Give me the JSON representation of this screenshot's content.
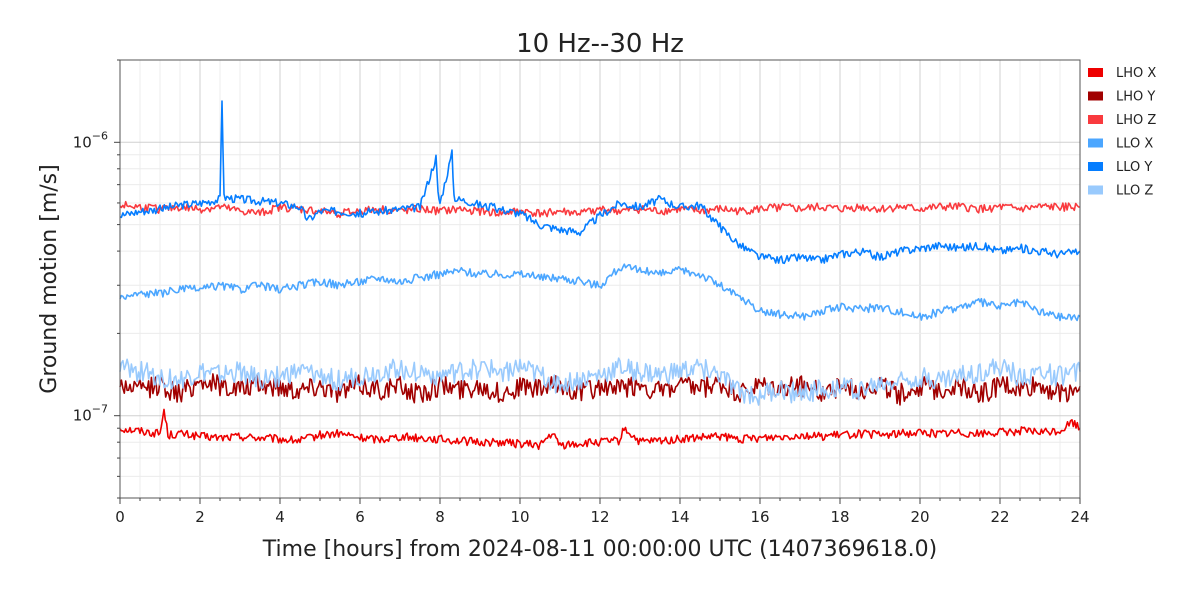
{
  "chart_data": {
    "type": "line",
    "title": "10 Hz--30 Hz",
    "xlabel": "Time [hours] from 2024-08-11 00:00:00 UTC (1407369618.0)",
    "ylabel": "Ground motion [m/s]",
    "xlim": [
      0,
      24
    ],
    "ylim": [
      5e-08,
      2e-06
    ],
    "yscale": "log",
    "grid": true,
    "legend_position": "outside-top-right",
    "x_ticks": [
      {
        "value": 0,
        "label": "0"
      },
      {
        "value": 2,
        "label": "2"
      },
      {
        "value": 4,
        "label": "4"
      },
      {
        "value": 6,
        "label": "6"
      },
      {
        "value": 8,
        "label": "8"
      },
      {
        "value": 10,
        "label": "10"
      },
      {
        "value": 12,
        "label": "12"
      },
      {
        "value": 14,
        "label": "14"
      },
      {
        "value": 16,
        "label": "16"
      },
      {
        "value": 18,
        "label": "18"
      },
      {
        "value": 20,
        "label": "20"
      },
      {
        "value": 22,
        "label": "22"
      },
      {
        "value": 24,
        "label": "24"
      }
    ],
    "y_ticks": [
      {
        "value": 1e-07,
        "mantissa": "10",
        "exponent": "−7"
      },
      {
        "value": 1e-06,
        "mantissa": "10",
        "exponent": "−6"
      }
    ],
    "series": [
      {
        "name": "LHO X",
        "color": "#ee0000",
        "x": [
          0,
          0.5,
          1,
          1.1,
          1.2,
          1.5,
          2,
          2.5,
          3,
          3.5,
          4,
          4.5,
          5,
          5.5,
          6,
          6.5,
          7,
          7.5,
          8,
          8.5,
          9,
          9.5,
          10,
          10.5,
          10.8,
          11,
          11.5,
          12,
          12.5,
          12.6,
          13,
          13.5,
          14,
          14.5,
          15,
          15.5,
          16,
          16.5,
          17,
          17.5,
          18,
          18.5,
          19,
          19.5,
          20,
          20.5,
          21,
          21.5,
          22,
          22.5,
          23,
          23.5,
          23.8,
          24
        ],
        "y": [
          9e-08,
          8.8e-08,
          8.6e-08,
          1.05e-07,
          8.5e-08,
          8.6e-08,
          8.4e-08,
          8.3e-08,
          8.4e-08,
          8.3e-08,
          8.2e-08,
          8.1e-08,
          8.5e-08,
          8.6e-08,
          8.3e-08,
          8.2e-08,
          8.4e-08,
          8.3e-08,
          8.2e-08,
          8.1e-08,
          8e-08,
          8e-08,
          7.9e-08,
          7.8e-08,
          8.6e-08,
          7.8e-08,
          7.9e-08,
          8e-08,
          8.1e-08,
          9e-08,
          8e-08,
          8.1e-08,
          8.2e-08,
          8.3e-08,
          8.4e-08,
          8.2e-08,
          8.3e-08,
          8.4e-08,
          8.5e-08,
          8.4e-08,
          8.5e-08,
          8.6e-08,
          8.5e-08,
          8.6e-08,
          8.7e-08,
          8.6e-08,
          8.7e-08,
          8.6e-08,
          8.7e-08,
          8.8e-08,
          8.7e-08,
          8.8e-08,
          9.5e-08,
          9e-08
        ]
      },
      {
        "name": "LHO Y",
        "color": "#a10000",
        "x": [
          0,
          0.5,
          1,
          1.5,
          2,
          2.5,
          3,
          3.5,
          4,
          4.5,
          5,
          5.5,
          6,
          6.5,
          7,
          7.5,
          8,
          8.5,
          9,
          9.5,
          10,
          10.5,
          11,
          11.5,
          12,
          12.5,
          13,
          13.5,
          14,
          14.5,
          15,
          15.5,
          16,
          16.5,
          17,
          17.5,
          18,
          18.5,
          19,
          19.5,
          20,
          20.5,
          21,
          21.5,
          22,
          22.5,
          23,
          23.5,
          24
        ],
        "y": [
          1.3e-07,
          1.25e-07,
          1.3e-07,
          1.2e-07,
          1.35e-07,
          1.3e-07,
          1.25e-07,
          1.3e-07,
          1.28e-07,
          1.25e-07,
          1.3e-07,
          1.22e-07,
          1.3e-07,
          1.25e-07,
          1.28e-07,
          1.2e-07,
          1.3e-07,
          1.25e-07,
          1.3e-07,
          1.2e-07,
          1.28e-07,
          1.25e-07,
          1.3e-07,
          1.22e-07,
          1.28e-07,
          1.25e-07,
          1.3e-07,
          1.22e-07,
          1.28e-07,
          1.25e-07,
          1.3e-07,
          1.2e-07,
          1.28e-07,
          1.25e-07,
          1.3e-07,
          1.22e-07,
          1.28e-07,
          1.25e-07,
          1.3e-07,
          1.2e-07,
          1.28e-07,
          1.25e-07,
          1.3e-07,
          1.2e-07,
          1.3e-07,
          1.25e-07,
          1.3e-07,
          1.2e-07,
          1.28e-07
        ]
      },
      {
        "name": "LHO Z",
        "color": "#f93a3e",
        "x": [
          0,
          0.5,
          1,
          1.5,
          2,
          2.5,
          3,
          3.5,
          4,
          4.5,
          5,
          5.5,
          6,
          6.5,
          7,
          7.5,
          8,
          8.5,
          9,
          9.5,
          10,
          10.5,
          11,
          11.5,
          12,
          12.5,
          13,
          13.5,
          14,
          14.5,
          15,
          15.5,
          16,
          16.5,
          17,
          17.5,
          18,
          18.5,
          19,
          19.5,
          20,
          20.5,
          21,
          21.5,
          22,
          22.5,
          23,
          23.5,
          24
        ],
        "y": [
          5.9e-07,
          5.8e-07,
          5.7e-07,
          5.8e-07,
          5.7e-07,
          5.8e-07,
          5.6e-07,
          5.5e-07,
          5.8e-07,
          5.7e-07,
          5.6e-07,
          5.5e-07,
          5.6e-07,
          5.7e-07,
          5.6e-07,
          5.7e-07,
          5.6e-07,
          5.7e-07,
          5.6e-07,
          5.5e-07,
          5.6e-07,
          5.5e-07,
          5.6e-07,
          5.5e-07,
          5.7e-07,
          5.6e-07,
          5.7e-07,
          5.6e-07,
          5.7e-07,
          5.6e-07,
          5.7e-07,
          5.6e-07,
          5.7e-07,
          5.8e-07,
          5.7e-07,
          5.8e-07,
          5.7e-07,
          5.8e-07,
          5.7e-07,
          5.8e-07,
          5.7e-07,
          5.8e-07,
          5.8e-07,
          5.7e-07,
          5.8e-07,
          5.7e-07,
          5.8e-07,
          5.8e-07,
          5.8e-07
        ]
      },
      {
        "name": "LLO X",
        "color": "#4ba6ff",
        "x": [
          0,
          0.5,
          1,
          1.5,
          2,
          2.5,
          3,
          3.5,
          4,
          4.5,
          5,
          5.5,
          6,
          6.5,
          7,
          7.5,
          8,
          8.5,
          9,
          9.5,
          10,
          10.5,
          11,
          11.5,
          12,
          12.5,
          13,
          13.5,
          14,
          14.5,
          15,
          15.5,
          16,
          16.5,
          17,
          17.5,
          18,
          18.5,
          19,
          19.5,
          20,
          20.5,
          21,
          21.5,
          22,
          22.5,
          23,
          23.5,
          24
        ],
        "y": [
          2.7e-07,
          2.8e-07,
          2.8e-07,
          2.9e-07,
          2.9e-07,
          3e-07,
          2.9e-07,
          3e-07,
          2.9e-07,
          3e-07,
          3.1e-07,
          3e-07,
          3.1e-07,
          3.2e-07,
          3.1e-07,
          3.2e-07,
          3.3e-07,
          3.4e-07,
          3.3e-07,
          3.3e-07,
          3.3e-07,
          3.2e-07,
          3.2e-07,
          3.1e-07,
          3e-07,
          3.5e-07,
          3.4e-07,
          3.3e-07,
          3.4e-07,
          3.3e-07,
          3e-07,
          2.7e-07,
          2.4e-07,
          2.35e-07,
          2.3e-07,
          2.4e-07,
          2.5e-07,
          2.45e-07,
          2.5e-07,
          2.4e-07,
          2.3e-07,
          2.4e-07,
          2.5e-07,
          2.6e-07,
          2.5e-07,
          2.6e-07,
          2.4e-07,
          2.3e-07,
          2.3e-07
        ]
      },
      {
        "name": "LLO Y",
        "color": "#057dff",
        "x": [
          0,
          0.5,
          1,
          1.5,
          2,
          2.5,
          2.55,
          2.6,
          3,
          3.5,
          4,
          4.5,
          4.7,
          5,
          5.5,
          6,
          6.5,
          7,
          7.5,
          7.9,
          7.95,
          8,
          8.3,
          8.35,
          8.4,
          8.7,
          9,
          9.5,
          10,
          10.5,
          11,
          11.5,
          12,
          12.5,
          13,
          13.5,
          14,
          14.5,
          15,
          15.5,
          16,
          16.5,
          17,
          17.5,
          18,
          18.5,
          19,
          19.5,
          20,
          20.5,
          21,
          21.5,
          22,
          22.5,
          23,
          23.5,
          24
        ],
        "y": [
          5.4e-07,
          5.6e-07,
          5.7e-07,
          5.9e-07,
          6e-07,
          6.2e-07,
          1.45e-06,
          6.3e-07,
          6.2e-07,
          6.1e-07,
          6e-07,
          5.8e-07,
          5.2e-07,
          5.6e-07,
          5.6e-07,
          5.5e-07,
          5.6e-07,
          5.7e-07,
          5.8e-07,
          8.8e-07,
          6.5e-07,
          6e-07,
          9.1e-07,
          6.4e-07,
          6.2e-07,
          6.1e-07,
          5.9e-07,
          5.7e-07,
          5.5e-07,
          5e-07,
          4.8e-07,
          4.7e-07,
          5.4e-07,
          6e-07,
          5.8e-07,
          6.2e-07,
          5.8e-07,
          5.9e-07,
          4.9e-07,
          4.2e-07,
          3.8e-07,
          3.7e-07,
          3.8e-07,
          3.7e-07,
          3.9e-07,
          4e-07,
          3.8e-07,
          4e-07,
          4.1e-07,
          4.2e-07,
          4.1e-07,
          4.2e-07,
          4e-07,
          4.1e-07,
          4e-07,
          3.9e-07,
          4e-07
        ]
      },
      {
        "name": "LLO Z",
        "color": "#99cafd",
        "x": [
          0,
          0.5,
          1,
          1.5,
          2,
          2.5,
          3,
          3.5,
          4,
          4.5,
          5,
          5.5,
          6,
          6.5,
          7,
          7.5,
          8,
          8.5,
          9,
          9.5,
          10,
          10.5,
          11,
          11.5,
          12,
          12.5,
          13,
          13.5,
          14,
          14.5,
          15,
          15.5,
          16,
          16.5,
          17,
          17.5,
          18,
          18.5,
          19,
          19.5,
          20,
          20.5,
          21,
          21.5,
          22,
          22.5,
          23,
          23.5,
          24
        ],
        "y": [
          1.5e-07,
          1.45e-07,
          1.4e-07,
          1.35e-07,
          1.45e-07,
          1.4e-07,
          1.45e-07,
          1.35e-07,
          1.4e-07,
          1.45e-07,
          1.4e-07,
          1.35e-07,
          1.4e-07,
          1.45e-07,
          1.5e-07,
          1.45e-07,
          1.4e-07,
          1.45e-07,
          1.5e-07,
          1.45e-07,
          1.5e-07,
          1.4e-07,
          1.3e-07,
          1.35e-07,
          1.4e-07,
          1.5e-07,
          1.45e-07,
          1.4e-07,
          1.45e-07,
          1.5e-07,
          1.4e-07,
          1.2e-07,
          1.2e-07,
          1.25e-07,
          1.2e-07,
          1.25e-07,
          1.3e-07,
          1.25e-07,
          1.3e-07,
          1.35e-07,
          1.4e-07,
          1.35e-07,
          1.4e-07,
          1.45e-07,
          1.5e-07,
          1.4e-07,
          1.45e-07,
          1.4e-07,
          1.45e-07
        ]
      }
    ]
  }
}
